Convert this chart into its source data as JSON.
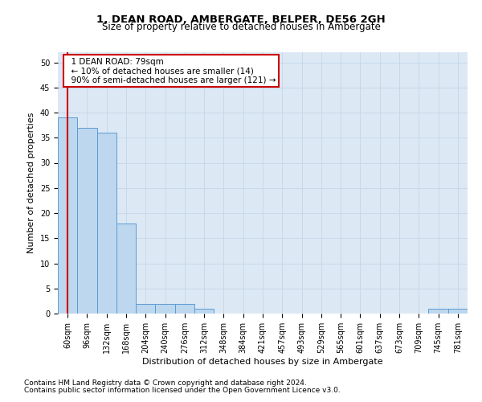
{
  "title": "1, DEAN ROAD, AMBERGATE, BELPER, DE56 2GH",
  "subtitle": "Size of property relative to detached houses in Ambergate",
  "xlabel": "Distribution of detached houses by size in Ambergate",
  "ylabel": "Number of detached properties",
  "categories": [
    "60sqm",
    "96sqm",
    "132sqm",
    "168sqm",
    "204sqm",
    "240sqm",
    "276sqm",
    "312sqm",
    "348sqm",
    "384sqm",
    "421sqm",
    "457sqm",
    "493sqm",
    "529sqm",
    "565sqm",
    "601sqm",
    "637sqm",
    "673sqm",
    "709sqm",
    "745sqm",
    "781sqm"
  ],
  "values": [
    39,
    37,
    36,
    18,
    2,
    2,
    2,
    1,
    0,
    0,
    0,
    0,
    0,
    0,
    0,
    0,
    0,
    0,
    0,
    1,
    1
  ],
  "bar_color": "#bdd7ee",
  "bar_edge_color": "#5b9bd5",
  "property_line_color": "#cc0000",
  "annotation_title": "1 DEAN ROAD: 79sqm",
  "annotation_line1": "← 10% of detached houses are smaller (14)",
  "annotation_line2": "90% of semi-detached houses are larger (121) →",
  "annotation_box_color": "#ffffff",
  "annotation_box_edge": "#cc0000",
  "ylim": [
    0,
    52
  ],
  "yticks": [
    0,
    5,
    10,
    15,
    20,
    25,
    30,
    35,
    40,
    45,
    50
  ],
  "grid_color": "#c8d8e8",
  "background_color": "#dce9f5",
  "footer1": "Contains HM Land Registry data © Crown copyright and database right 2024.",
  "footer2": "Contains public sector information licensed under the Open Government Licence v3.0.",
  "title_fontsize": 9.5,
  "subtitle_fontsize": 8.5,
  "xlabel_fontsize": 8,
  "ylabel_fontsize": 8,
  "tick_fontsize": 7,
  "annot_fontsize": 7.5,
  "footer_fontsize": 6.5
}
